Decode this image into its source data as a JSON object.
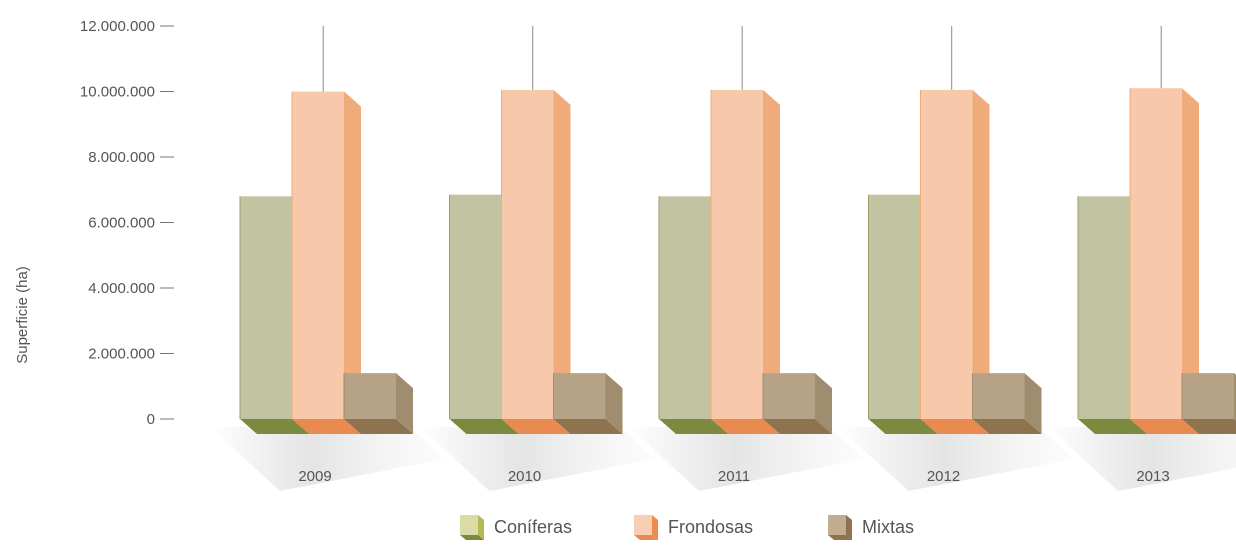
{
  "chart_data": {
    "type": "bar",
    "title": "",
    "xlabel": "",
    "ylabel": "Superficie (ha)",
    "ylim": [
      0,
      12000000
    ],
    "y_ticks": [
      0,
      2000000,
      4000000,
      6000000,
      8000000,
      10000000,
      12000000
    ],
    "y_tick_labels": [
      "0",
      "2.000.000",
      "4.000.000",
      "6.000.000",
      "8.000.000",
      "10.000.000",
      "12.000.000"
    ],
    "categories": [
      "2009",
      "2010",
      "2011",
      "2012",
      "2013"
    ],
    "series": [
      {
        "name": "Coníferas",
        "values": [
          6800000,
          6850000,
          6800000,
          6850000,
          6800000
        ]
      },
      {
        "name": "Frondosas",
        "values": [
          10000000,
          10050000,
          10050000,
          10050000,
          10100000
        ]
      },
      {
        "name": "Mixtas",
        "values": [
          1400000,
          1400000,
          1400000,
          1400000,
          1400000
        ]
      }
    ],
    "legend_position": "bottom-center",
    "grid": false,
    "style": "3d"
  },
  "colors": {
    "coniferas": {
      "front": "#c2c4a1",
      "side": "#9a9f6c",
      "base": "#7b8a3e",
      "legend_front": "#dadba6",
      "legend_side": "#b5b857"
    },
    "frondosas": {
      "front": "#f7c8a9",
      "side": "#f0ab7a",
      "base": "#e98a50",
      "legend_front": "#f9cfb3",
      "legend_side": "#ee8c4e"
    },
    "mixtas": {
      "front": "#b6a286",
      "side": "#a08c6e",
      "base": "#8e734e",
      "legend_front": "#c0ad92",
      "legend_side": "#8e734e"
    },
    "axis": "#777777",
    "text": "#555555"
  }
}
